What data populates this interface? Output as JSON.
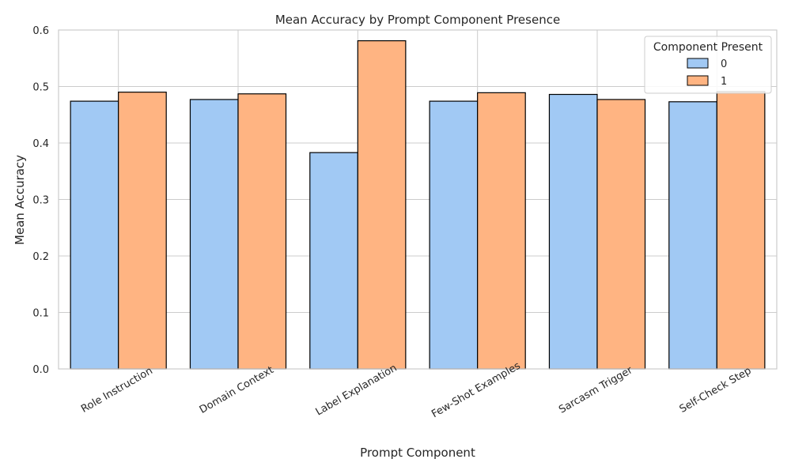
{
  "chart_data": {
    "type": "bar",
    "title": "Mean Accuracy by Prompt Component Presence",
    "xlabel": "Prompt Component",
    "ylabel": "Mean Accuracy",
    "categories": [
      "Role Instruction",
      "Domain Context",
      "Label Explanation",
      "Few-Shot Examples",
      "Sarcasm Trigger",
      "Self-Check Step"
    ],
    "series": [
      {
        "name": "0",
        "color": "#a1c9f4",
        "values": [
          0.474,
          0.477,
          0.383,
          0.474,
          0.486,
          0.473
        ]
      },
      {
        "name": "1",
        "color": "#ffb482",
        "values": [
          0.49,
          0.487,
          0.581,
          0.489,
          0.477,
          0.491
        ]
      }
    ],
    "ylim": [
      0,
      0.6
    ],
    "yticks": [
      "0.0",
      "0.1",
      "0.2",
      "0.3",
      "0.4",
      "0.5",
      "0.6"
    ],
    "grid": true,
    "legend": {
      "title": "Component Present",
      "position": "top-right"
    }
  }
}
